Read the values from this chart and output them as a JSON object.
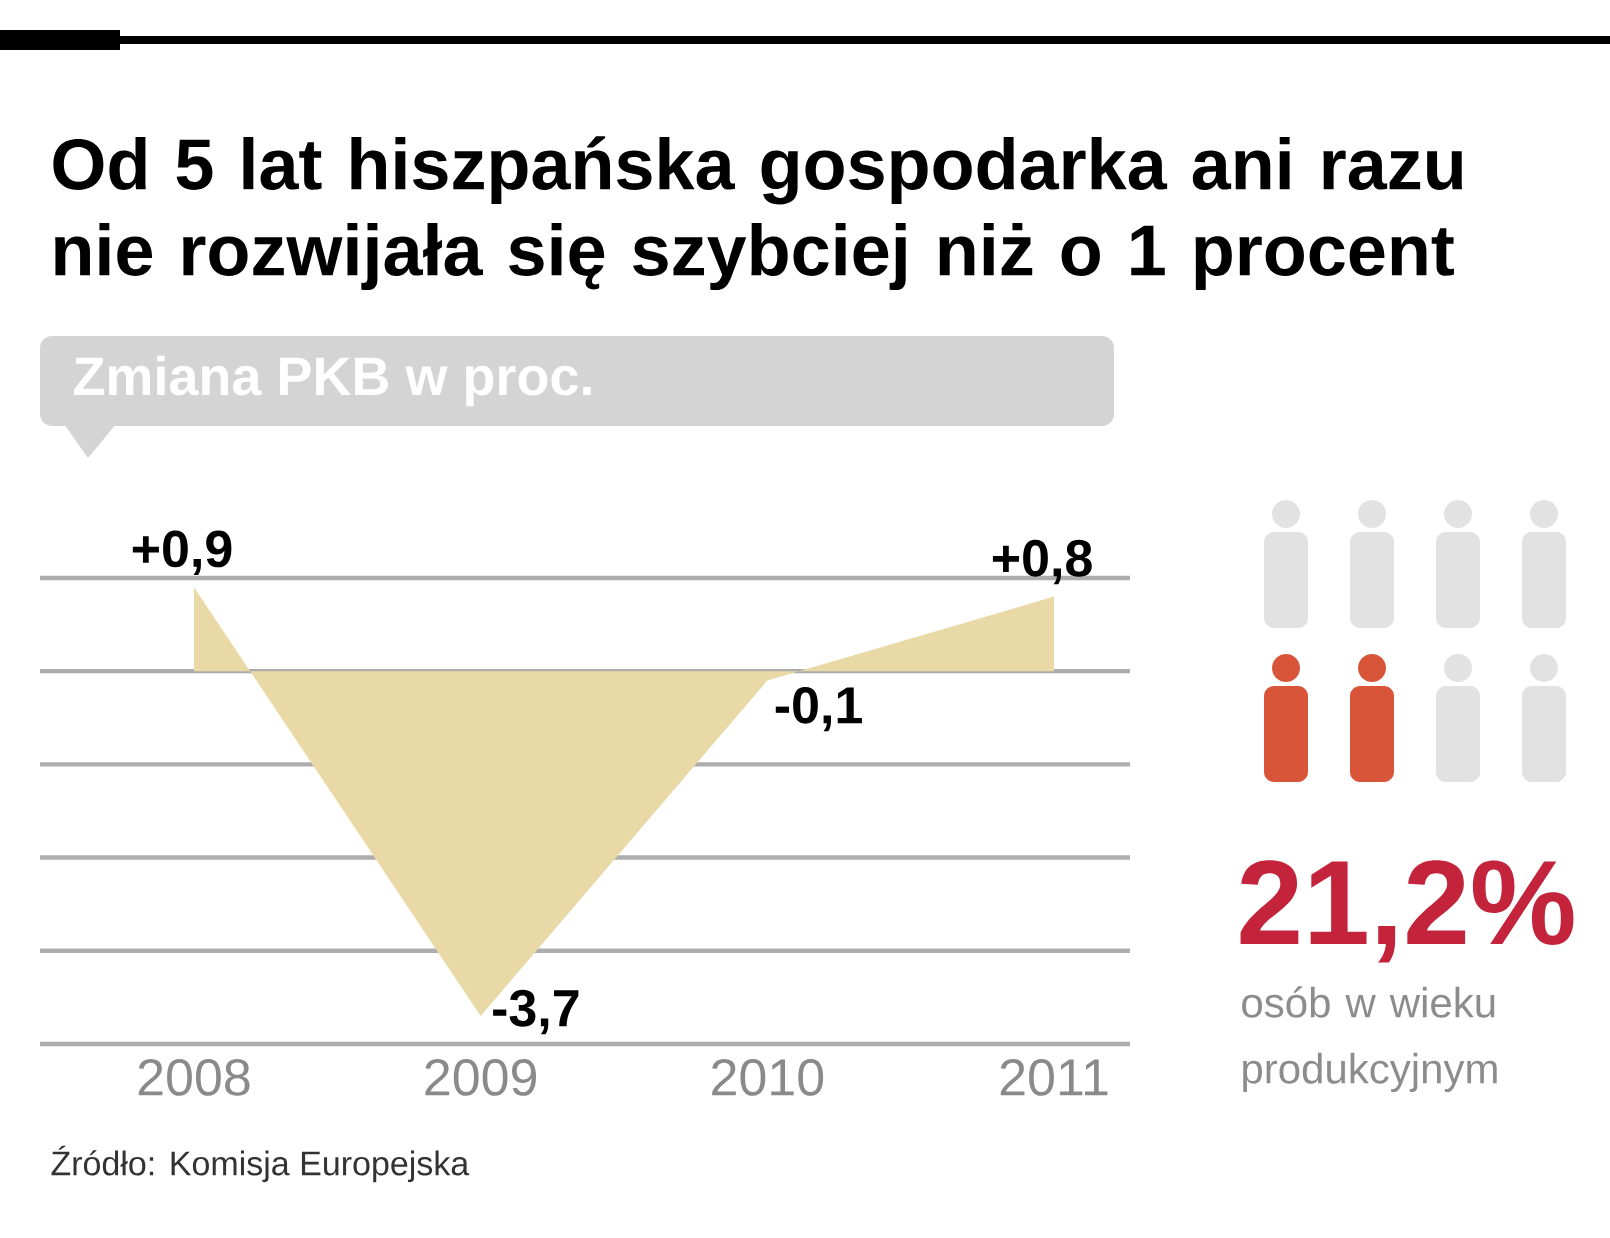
{
  "chart_data": [
    {
      "type": "area",
      "title": "Od 5 lat hiszpańska gospodarka ani razu nie rozwijała się szybciej niż o 1 procent",
      "subtitle": "Zmiana PKB w proc.",
      "categories": [
        "2008",
        "2009",
        "2010",
        "2011"
      ],
      "values": [
        0.9,
        -3.7,
        -0.1,
        0.8
      ],
      "value_labels": [
        "+0,9",
        "-3,7",
        "-0,1",
        "+0,8"
      ],
      "color": "#e9d9a6",
      "ylim": [
        -4,
        1
      ],
      "yticks": [
        {
          "value": -4,
          "label": null
        },
        {
          "value": -3,
          "label": null
        },
        {
          "value": -2,
          "label": null
        },
        {
          "value": -1,
          "label": null
        },
        {
          "value": 0,
          "label": null
        },
        {
          "value": 1,
          "label": null
        }
      ],
      "grid": "y",
      "tick_labels": "x",
      "annotations": [
        "Źródło: Komisja Europejska"
      ]
    },
    {
      "type": "other",
      "title": "21,2%",
      "annotations": [
        "osób w wieku produkcyjnym"
      ]
    }
  ]
}
